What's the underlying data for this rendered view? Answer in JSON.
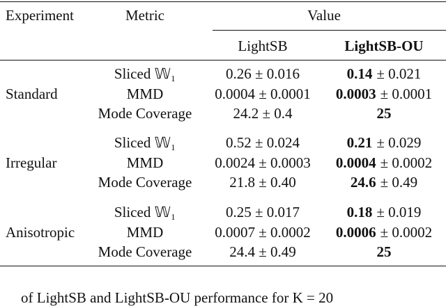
{
  "header": {
    "experiment": "Experiment",
    "metric": "Metric",
    "value": "Value",
    "methods": [
      "LightSB",
      "LightSB-OU"
    ]
  },
  "groups": [
    {
      "experiment": "Standard",
      "rows": [
        {
          "metric": "Sliced 𝕎₁",
          "lightsb": "0.26 ± 0.016",
          "lightsb_ou": {
            "bold": "0.14",
            "rest": "± 0.021"
          }
        },
        {
          "metric": "MMD",
          "lightsb": "0.0004 ± 0.0001",
          "lightsb_ou": {
            "bold": "0.0003",
            "rest": "± 0.0001"
          }
        },
        {
          "metric": "Mode Coverage",
          "lightsb": "24.2 ± 0.4",
          "lightsb_ou": {
            "bold": "25"
          }
        }
      ]
    },
    {
      "experiment": "Irregular",
      "rows": [
        {
          "metric": "Sliced 𝕎₁",
          "lightsb": "0.52 ± 0.024",
          "lightsb_ou": {
            "bold": "0.21",
            "rest": "± 0.029"
          }
        },
        {
          "metric": "MMD",
          "lightsb": "0.0024 ± 0.0003",
          "lightsb_ou": {
            "bold": "0.0004",
            "rest": "± 0.0002"
          }
        },
        {
          "metric": "Mode Coverage",
          "lightsb": "21.8 ± 0.40",
          "lightsb_ou": {
            "bold": "24.6",
            "rest": "± 0.49"
          }
        }
      ]
    },
    {
      "experiment": "Anisotropic",
      "rows": [
        {
          "metric": "Sliced 𝕎₁",
          "lightsb": "0.25 ± 0.017",
          "lightsb_ou": {
            "bold": "0.18",
            "rest": "± 0.019"
          }
        },
        {
          "metric": "MMD",
          "lightsb": "0.0007 ± 0.0002",
          "lightsb_ou": {
            "bold": "0.0006",
            "rest": "± 0.0002"
          }
        },
        {
          "metric": "Mode Coverage",
          "lightsb": "24.4 ± 0.49",
          "lightsb_ou": {
            "bold": "25"
          }
        }
      ]
    }
  ],
  "caption": "of LightSB and LightSB-OU performance for K = 20"
}
